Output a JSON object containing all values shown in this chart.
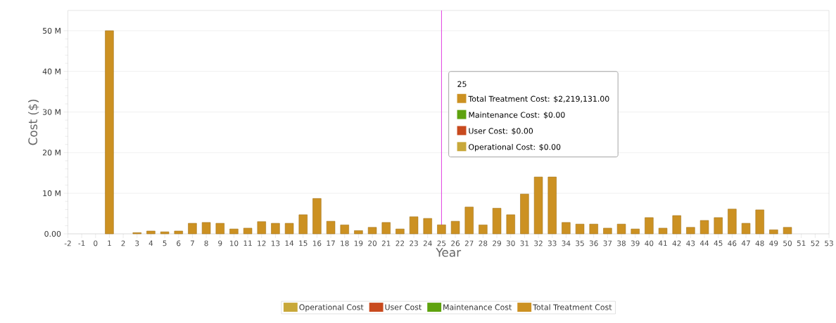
{
  "chart_data": {
    "type": "bar",
    "stacked": true,
    "xlabel": "Year",
    "ylabel": "Cost ($)",
    "x": [
      1,
      2,
      3,
      4,
      5,
      6,
      7,
      8,
      9,
      10,
      11,
      12,
      13,
      14,
      15,
      16,
      17,
      18,
      19,
      20,
      21,
      22,
      23,
      24,
      25,
      26,
      27,
      28,
      29,
      30,
      31,
      32,
      33,
      34,
      35,
      36,
      37,
      38,
      39,
      40,
      41,
      42,
      43,
      44,
      45,
      46,
      47,
      48,
      49,
      50
    ],
    "series": [
      {
        "name": "Operational Cost",
        "color": "#c8a83a",
        "values": [
          0,
          0,
          0,
          0,
          0,
          0,
          0,
          0,
          0,
          0,
          0,
          0,
          0,
          0,
          0,
          0,
          0,
          0,
          0,
          0,
          0,
          0,
          0,
          0,
          0,
          0,
          0,
          0,
          0,
          0,
          0,
          0,
          0,
          0,
          0,
          0,
          0,
          0,
          0,
          0,
          0,
          0,
          0,
          0,
          0,
          0,
          0,
          0,
          0,
          0
        ]
      },
      {
        "name": "User Cost",
        "color": "#c84a1e",
        "values": [
          0,
          0,
          0,
          0,
          0,
          0,
          0,
          0,
          0,
          0,
          0,
          0,
          0,
          0,
          0,
          0,
          0,
          0,
          0,
          0,
          0,
          0,
          0,
          0,
          0,
          0,
          0,
          0,
          0,
          0,
          0,
          0,
          0,
          0,
          0,
          0,
          0,
          0,
          0,
          0,
          0,
          0,
          0,
          0,
          0,
          0,
          0,
          0,
          0,
          0
        ]
      },
      {
        "name": "Maintenance Cost",
        "color": "#5ea20e",
        "values": [
          0,
          0,
          0,
          0,
          0,
          0,
          0,
          0,
          0,
          0,
          0,
          0,
          0,
          0,
          0,
          0,
          0,
          0,
          0,
          0,
          0,
          0,
          0,
          0,
          0,
          0,
          0,
          0,
          0,
          0,
          0,
          0,
          0,
          0,
          0,
          0,
          0,
          0,
          0,
          0,
          0,
          0,
          0,
          0,
          0,
          0,
          0,
          0,
          0,
          0
        ]
      },
      {
        "name": "Total Treatment Cost",
        "color": "#cc9122",
        "values": [
          50,
          0,
          0.3,
          0.7,
          0.5,
          0.7,
          2.6,
          2.8,
          2.6,
          1.2,
          1.4,
          3.0,
          2.6,
          2.6,
          4.7,
          8.7,
          3.1,
          2.2,
          0.8,
          1.6,
          2.8,
          1.2,
          4.2,
          3.8,
          2.219131,
          3.1,
          6.6,
          2.2,
          6.3,
          4.7,
          9.8,
          14,
          14,
          2.8,
          2.4,
          2.4,
          1.4,
          2.4,
          1.2,
          4.0,
          1.4,
          4.5,
          1.6,
          3.3,
          4.0,
          6.1,
          2.6,
          5.9,
          1.0,
          1.6
        ]
      }
    ],
    "xlim": [
      -2,
      53
    ],
    "xticks": [
      -2,
      -1,
      0,
      1,
      2,
      3,
      4,
      5,
      6,
      7,
      8,
      9,
      10,
      11,
      12,
      13,
      14,
      15,
      16,
      17,
      18,
      19,
      20,
      21,
      22,
      23,
      24,
      25,
      26,
      27,
      28,
      29,
      30,
      31,
      32,
      33,
      34,
      35,
      36,
      37,
      38,
      39,
      40,
      41,
      42,
      43,
      44,
      45,
      46,
      47,
      48,
      49,
      50,
      51,
      52,
      53
    ],
    "ylim": [
      0,
      55
    ],
    "yticks": [
      {
        "value": 0,
        "label": "0.00"
      },
      {
        "value": 10,
        "label": "10 M"
      },
      {
        "value": 20,
        "label": "20 M"
      },
      {
        "value": 30,
        "label": "30 M"
      },
      {
        "value": 40,
        "label": "40 M"
      },
      {
        "value": 50,
        "label": "50 M"
      }
    ],
    "grid": "y",
    "legend": "bottom",
    "ref_lines": [
      {
        "axis": "x",
        "value": 25,
        "color": "#e040e0"
      }
    ],
    "annotations": [
      "25",
      "Total Treatment Cost: $2,219,131.00",
      "Maintenance Cost: $0.00",
      "User Cost: $0.00",
      "Operational Cost: $0.00"
    ]
  }
}
